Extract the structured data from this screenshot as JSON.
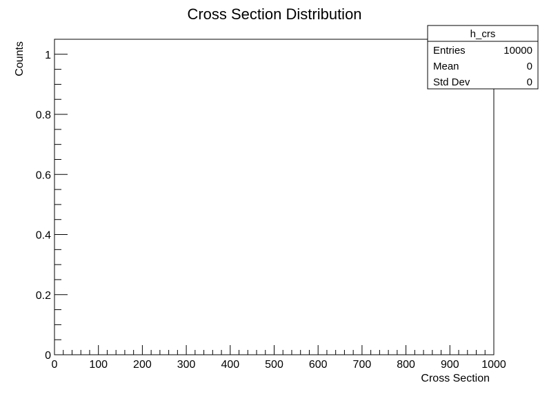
{
  "chart_data": {
    "type": "bar",
    "title": "Cross Section Distribution",
    "xlabel": "Cross Section",
    "ylabel": "Counts",
    "xlim": [
      0,
      1000
    ],
    "ylim": [
      0,
      1.05
    ],
    "x_ticks": [
      0,
      100,
      200,
      300,
      400,
      500,
      600,
      700,
      800,
      900,
      1000
    ],
    "x_tick_labels": [
      "0",
      "100",
      "200",
      "300",
      "400",
      "500",
      "600",
      "700",
      "800",
      "900",
      "1000"
    ],
    "y_ticks": [
      0,
      0.2,
      0.4,
      0.6,
      0.8,
      1
    ],
    "y_tick_labels": [
      "0",
      "0.2",
      "0.4",
      "0.6",
      "0.8",
      "1"
    ],
    "x_minor_per_major": 5,
    "y_minor_per_major": 4,
    "grid": false,
    "series": [
      {
        "name": "h_crs",
        "x": [],
        "values": []
      }
    ],
    "stats_box": {
      "name": "h_crs",
      "placement": "top-right",
      "rows": [
        {
          "label": "Entries",
          "value": "10000"
        },
        {
          "label": "Mean",
          "value": "0"
        },
        {
          "label": "Std Dev",
          "value": "0"
        }
      ]
    }
  }
}
